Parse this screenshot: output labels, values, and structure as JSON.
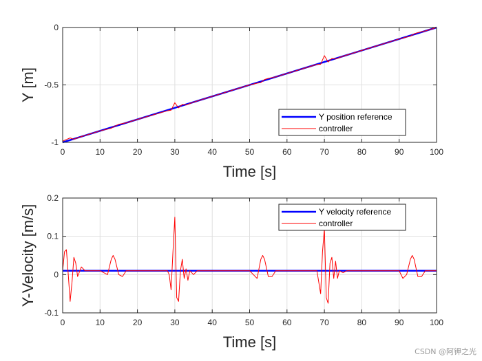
{
  "chart_data": [
    {
      "type": "line",
      "xlabel": "Time [s]",
      "ylabel": "Y [m]",
      "xlim": [
        0,
        100
      ],
      "ylim": [
        -1,
        0
      ],
      "xticks": [
        0,
        10,
        20,
        30,
        40,
        50,
        60,
        70,
        80,
        90,
        100
      ],
      "yticks": [
        -1,
        -0.5,
        0
      ],
      "grid": true,
      "legend_position": "bottom-right",
      "series": [
        {
          "name": "Y position reference",
          "color": "#0000ff",
          "x": [
            0,
            100
          ],
          "y": [
            -1,
            0
          ]
        },
        {
          "name": "controller",
          "color": "#ff0000",
          "x": [
            0,
            1,
            2,
            3,
            5,
            10,
            12,
            13,
            14,
            15,
            17,
            20,
            28,
            29,
            30,
            31,
            32,
            33,
            35,
            40,
            50,
            52,
            53,
            54,
            55,
            57,
            60,
            68,
            69,
            70,
            71,
            72,
            73,
            75,
            80,
            90,
            92,
            93,
            94,
            95,
            97,
            100
          ],
          "y": [
            -0.99,
            -0.975,
            -0.962,
            -0.973,
            -0.95,
            -0.9,
            -0.885,
            -0.877,
            -0.858,
            -0.843,
            -0.83,
            -0.8,
            -0.725,
            -0.72,
            -0.655,
            -0.7,
            -0.67,
            -0.675,
            -0.65,
            -0.6,
            -0.5,
            -0.485,
            -0.48,
            -0.453,
            -0.443,
            -0.43,
            -0.4,
            -0.322,
            -0.32,
            -0.245,
            -0.3,
            -0.27,
            -0.275,
            -0.25,
            -0.2,
            -0.1,
            -0.083,
            -0.076,
            -0.055,
            -0.045,
            -0.03,
            0
          ]
        }
      ]
    },
    {
      "type": "line",
      "xlabel": "Time [s]",
      "ylabel": "Y-Velocity [m/s]",
      "xlim": [
        0,
        100
      ],
      "ylim": [
        -0.1,
        0.2
      ],
      "xticks": [
        0,
        10,
        20,
        30,
        40,
        50,
        60,
        70,
        80,
        90,
        100
      ],
      "yticks": [
        -0.1,
        0,
        0.1,
        0.2
      ],
      "grid": true,
      "legend_position": "top-right",
      "series": [
        {
          "name": "Y velocity reference",
          "color": "#0000ff",
          "x": [
            0,
            100
          ],
          "y": [
            0.01,
            0.01
          ]
        },
        {
          "name": "controller",
          "color": "#ff0000",
          "x": [
            0,
            0.5,
            1,
            1.5,
            2,
            2.5,
            3,
            3.5,
            4,
            5,
            6,
            10,
            11,
            12,
            13,
            13.5,
            14,
            15,
            16,
            17,
            28,
            28.5,
            29,
            29.5,
            30,
            30.5,
            31,
            31.5,
            32,
            32.5,
            33,
            33.5,
            34,
            35,
            36,
            50,
            51,
            52,
            53,
            53.5,
            54,
            55,
            56,
            57,
            68,
            68.5,
            69,
            69.5,
            70,
            70.5,
            71,
            71.5,
            72,
            72.5,
            73,
            73.5,
            74,
            75,
            76,
            90,
            91,
            92,
            93,
            93.5,
            94,
            95,
            96,
            97,
            100
          ],
          "y": [
            0.01,
            0.06,
            0.065,
            0.0,
            -0.07,
            -0.02,
            0.045,
            0.03,
            -0.005,
            0.02,
            0.01,
            0.01,
            0.005,
            0.0,
            0.04,
            0.05,
            0.04,
            0.0,
            -0.005,
            0.01,
            0.01,
            0.0,
            -0.04,
            0.06,
            0.15,
            -0.06,
            -0.07,
            0.01,
            0.04,
            -0.01,
            0.015,
            -0.015,
            0.01,
            0.0,
            0.01,
            0.01,
            0.0,
            -0.01,
            0.04,
            0.05,
            0.04,
            -0.005,
            -0.005,
            0.01,
            0.01,
            -0.02,
            -0.05,
            0.06,
            0.12,
            -0.06,
            -0.075,
            0.03,
            0.045,
            -0.01,
            0.035,
            -0.01,
            0.01,
            0.005,
            0.01,
            0.01,
            -0.01,
            0.0,
            0.04,
            0.05,
            0.04,
            -0.005,
            -0.005,
            0.01,
            0.01
          ]
        }
      ]
    }
  ],
  "watermark": "CSDN @阿钾之光"
}
